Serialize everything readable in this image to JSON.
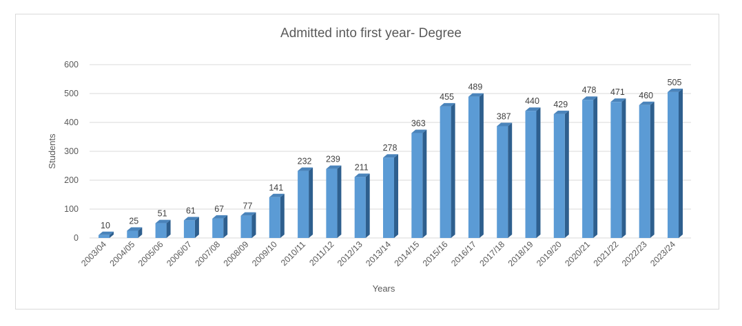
{
  "chart_data": {
    "type": "bar",
    "title": "Admitted into first year- Degree",
    "xlabel": "Years",
    "ylabel": "Students",
    "ylim": [
      0,
      600
    ],
    "yticks": [
      0,
      100,
      200,
      300,
      400,
      500,
      600
    ],
    "grid": true,
    "categories": [
      "2003/04",
      "2004/05",
      "2005/06",
      "2006/07",
      "2007/08",
      "2008/09",
      "2009/10",
      "2010/11",
      "2011/12",
      "2012/13",
      "2013/14",
      "2014/15",
      "2015/16",
      "2016/17",
      "2017/18",
      "2018/19",
      "2019/20",
      "2020/21",
      "2021/22",
      "2022/23",
      "2023/24"
    ],
    "values": [
      10,
      25,
      51,
      61,
      67,
      77,
      141,
      232,
      239,
      211,
      278,
      363,
      455,
      489,
      387,
      440,
      429,
      478,
      471,
      460,
      505
    ],
    "colors": {
      "bar_front": "#5b9bd5",
      "bar_side": "#2e5f8e",
      "bar_top": "#4a84bb",
      "grid": "#d9d9d9"
    }
  }
}
